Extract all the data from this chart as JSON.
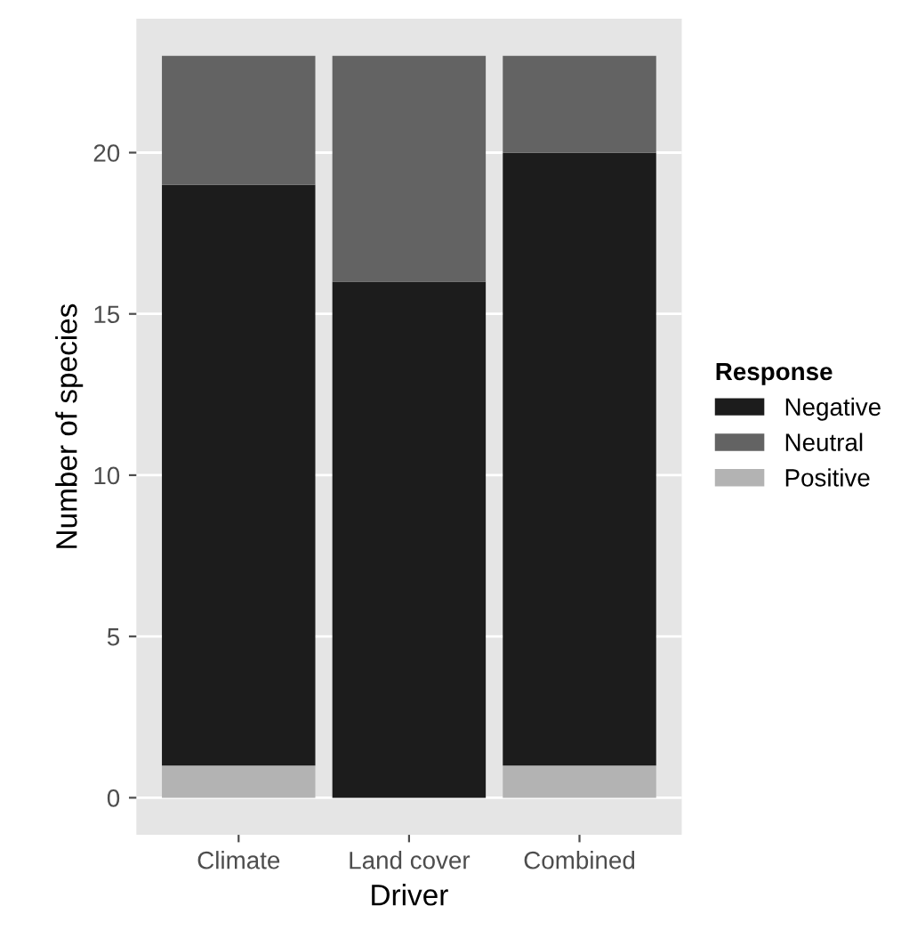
{
  "chart_data": {
    "type": "bar",
    "stacked": true,
    "xlabel": "Driver",
    "ylabel": "Number of species",
    "legend_title": "Response",
    "categories": [
      "Climate",
      "Land cover",
      "Combined"
    ],
    "series": [
      {
        "name": "Positive",
        "color": "#b3b3b3",
        "values": [
          1,
          0,
          1
        ]
      },
      {
        "name": "Negative",
        "color": "#1c1c1c",
        "values": [
          18,
          16,
          19
        ]
      },
      {
        "name": "Neutral",
        "color": "#636363",
        "values": [
          4,
          7,
          3
        ]
      }
    ],
    "ylim": [
      -1.15,
      24.15
    ],
    "yticks": [
      0,
      5,
      10,
      15,
      20
    ],
    "grid": "y",
    "legend": "right"
  }
}
